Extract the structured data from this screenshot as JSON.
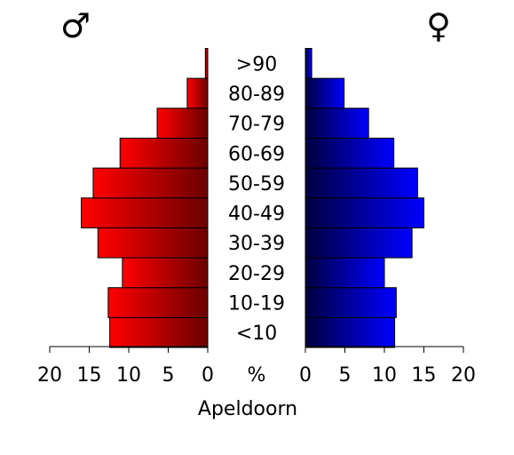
{
  "chart_data": {
    "type": "bar",
    "layout": "population-pyramid",
    "title": "Apeldoorn",
    "categories": [
      "<10",
      "10-19",
      "20-29",
      "30-39",
      "40-49",
      "50-59",
      "60-69",
      "70-79",
      "80-89",
      ">90"
    ],
    "center_label": "%",
    "series": [
      {
        "name": "♂",
        "side": "left",
        "values": [
          12.4,
          12.6,
          10.8,
          13.9,
          16.0,
          14.5,
          11.1,
          6.4,
          2.6,
          0.3
        ],
        "color_from": "#ff0000",
        "color_to": "#6b0000"
      },
      {
        "name": "♀",
        "side": "right",
        "values": [
          11.3,
          11.5,
          10.0,
          13.5,
          15.0,
          14.2,
          11.2,
          8.0,
          4.9,
          0.8
        ],
        "color_from": "#00003f",
        "color_to": "#0000ff"
      }
    ],
    "xlim": [
      0,
      20
    ],
    "ticks": [
      0,
      5,
      10,
      15,
      20
    ],
    "tick_labels": [
      "0",
      "5",
      "10",
      "15",
      "20"
    ],
    "grid": false
  }
}
